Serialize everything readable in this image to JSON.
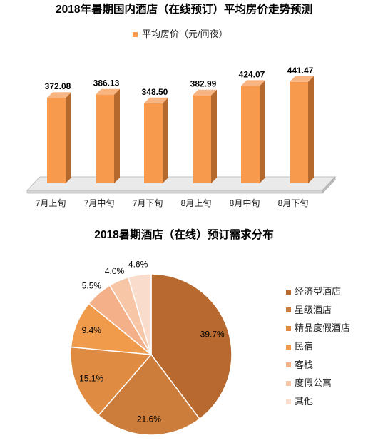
{
  "page": {
    "background": "#FFFFFF"
  },
  "chart_data": [
    {
      "type": "bar",
      "3d": true,
      "title": "2018年暑期国内酒店（在线预订）平均房价走势预测",
      "categories": [
        "7月上旬",
        "7月中旬",
        "7月下旬",
        "8月上旬",
        "8月中旬",
        "8月下旬"
      ],
      "series": [
        {
          "name": "平均房价（元/间夜）",
          "values": [
            372.08,
            386.13,
            348.5,
            382.99,
            424.07,
            441.47
          ],
          "data_labels": [
            "372.08",
            "386.13",
            "348.50",
            "382.99",
            "424.07",
            "441.47"
          ],
          "colors": {
            "front": "#F79A4D",
            "side": "#B6692D",
            "top": "#F8B582",
            "floor": "#EAEAEA"
          }
        }
      ],
      "ylim": [
        0,
        500
      ],
      "y_axis_visible": false,
      "grid": false,
      "legend": "top"
    },
    {
      "type": "pie",
      "title": "2018暑期酒店（在线）预订需求分布",
      "categories": [
        "经济型酒店",
        "星级酒店",
        "精品度假酒店",
        "民宿",
        "客栈",
        "度假公寓",
        "其他"
      ],
      "values": [
        39.7,
        21.6,
        15.1,
        9.4,
        5.5,
        4.0,
        4.6
      ],
      "data_labels": [
        "39.7%",
        "21.6%",
        "15.1%",
        "9.4%",
        "5.5%",
        "4.0%",
        "4.6%"
      ],
      "colors": [
        "#B8692F",
        "#CC7D3B",
        "#DF8B42",
        "#F09A4B",
        "#F4B088",
        "#F7C6A7",
        "#F9DCCB"
      ],
      "legend": "right"
    }
  ]
}
